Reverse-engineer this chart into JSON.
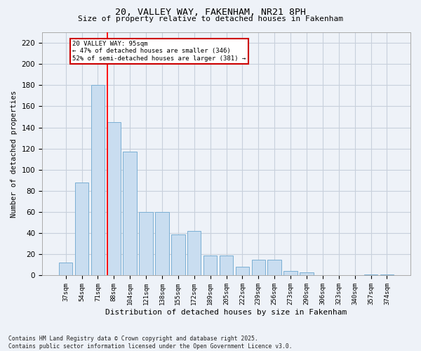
{
  "title_line1": "20, VALLEY WAY, FAKENHAM, NR21 8PH",
  "title_line2": "Size of property relative to detached houses in Fakenham",
  "xlabel": "Distribution of detached houses by size in Fakenham",
  "ylabel": "Number of detached properties",
  "categories": [
    "37sqm",
    "54sqm",
    "71sqm",
    "88sqm",
    "104sqm",
    "121sqm",
    "138sqm",
    "155sqm",
    "172sqm",
    "189sqm",
    "205sqm",
    "222sqm",
    "239sqm",
    "256sqm",
    "273sqm",
    "290sqm",
    "306sqm",
    "323sqm",
    "340sqm",
    "357sqm",
    "374sqm"
  ],
  "values": [
    12,
    88,
    180,
    145,
    117,
    60,
    60,
    39,
    42,
    19,
    19,
    8,
    15,
    15,
    4,
    3,
    0,
    0,
    0,
    1,
    1
  ],
  "bar_color": "#c9ddf0",
  "bar_edge_color": "#7bafd4",
  "grid_color": "#c8d0dc",
  "background_color": "#eef2f8",
  "red_line_index": 3,
  "annotation_text": "20 VALLEY WAY: 95sqm\n← 47% of detached houses are smaller (346)\n52% of semi-detached houses are larger (381) →",
  "annotation_box_color": "#ffffff",
  "annotation_box_edge": "#cc0000",
  "ylim": [
    0,
    230
  ],
  "yticks": [
    0,
    20,
    40,
    60,
    80,
    100,
    120,
    140,
    160,
    180,
    200,
    220
  ],
  "footer": "Contains HM Land Registry data © Crown copyright and database right 2025.\nContains public sector information licensed under the Open Government Licence v3.0."
}
